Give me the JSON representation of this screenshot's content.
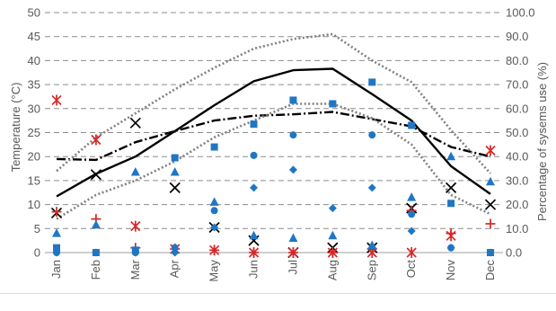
{
  "chart_data": {
    "type": "scatter",
    "categories": [
      "Jan",
      "Feb",
      "Mar",
      "Apr",
      "May",
      "Jun",
      "Jul",
      "Aug",
      "Sep",
      "Oct",
      "Nov",
      "Dec"
    ],
    "y_left": {
      "label": "Temperature (°C)",
      "range": [
        0,
        50
      ],
      "ticks": [
        "0",
        "5",
        "10",
        "15",
        "20",
        "25",
        "30",
        "35",
        "40",
        "45",
        "50"
      ]
    },
    "y_right": {
      "label": "Percentage of sysems use (%)",
      "range": [
        0,
        100
      ],
      "ticks": [
        "0.0",
        "10.0",
        "20.0",
        "30.0",
        "40.0",
        "50.0",
        "60.0",
        "70.0",
        "80.0",
        "90.0",
        "100.0"
      ]
    },
    "grid": "horizontal-dashed",
    "lines": [
      {
        "style": "solid",
        "color": "#000000",
        "axis": "left",
        "values": [
          11.7,
          16.4,
          20.0,
          25.3,
          30.7,
          35.7,
          38.0,
          38.3,
          33.0,
          27.5,
          18.0,
          12.2
        ]
      },
      {
        "style": "dash-dot",
        "color": "#000000",
        "axis": "left",
        "values": [
          19.5,
          19.3,
          23.0,
          25.3,
          27.5,
          28.5,
          28.8,
          29.3,
          27.8,
          26.3,
          22.0,
          20.0
        ]
      },
      {
        "style": "dotted",
        "color": "#808080",
        "axis": "left",
        "values": [
          17.0,
          24.0,
          29.0,
          34.0,
          38.5,
          42.5,
          44.5,
          45.5,
          40.0,
          35.5,
          25.5,
          16.5
        ]
      },
      {
        "style": "dotted",
        "color": "#808080",
        "axis": "left",
        "values": [
          7.0,
          12.0,
          15.0,
          19.0,
          24.0,
          27.5,
          31.0,
          31.0,
          28.0,
          22.5,
          12.0,
          8.0
        ]
      }
    ],
    "markers": [
      {
        "shape": "x",
        "color": "#000000",
        "axis": "right",
        "values": [
          16.5,
          32.5,
          54.0,
          27.0,
          10.5,
          5.0,
          0.0,
          2.0,
          2.0,
          18.5,
          27.0,
          20.0
        ]
      },
      {
        "shape": "asterisk",
        "color": "#d62728",
        "axis": "right",
        "values": [
          63.5,
          47.0,
          11.0,
          1.5,
          1.0,
          0.0,
          0.0,
          0.0,
          0.0,
          0.0,
          7.0,
          42.5
        ]
      },
      {
        "shape": "plus",
        "color": "#d62728",
        "axis": "right",
        "values": [
          17.0,
          14.0,
          2.0,
          1.5,
          1.0,
          0.0,
          0.0,
          0.0,
          1.5,
          17.5,
          8.0,
          12.0
        ]
      },
      {
        "shape": "triangle",
        "color": "#1f77c4",
        "axis": "right",
        "values": [
          8.0,
          11.5,
          33.5,
          33.5,
          21.0,
          7.0,
          6.0,
          7.0,
          3.0,
          23.0,
          40.0,
          29.5
        ]
      },
      {
        "shape": "square",
        "color": "#1f77c4",
        "axis": "right",
        "values": [
          2.0,
          0.0,
          1.0,
          39.5,
          44.0,
          53.5,
          63.5,
          62.0,
          71.0,
          53.0,
          20.5,
          0.0
        ]
      },
      {
        "shape": "circle",
        "color": "#1f77c4",
        "axis": "right",
        "values": [
          0.0,
          0.0,
          0.0,
          2.0,
          17.5,
          40.5,
          49.0,
          62.0,
          49.0,
          16.0,
          2.0,
          0.0
        ]
      },
      {
        "shape": "diamond",
        "color": "#1f77c4",
        "axis": "right",
        "values": [
          0.0,
          0.0,
          0.0,
          0.0,
          10.5,
          27.0,
          34.5,
          18.5,
          27.0,
          9.0,
          2.0,
          0.0
        ]
      }
    ]
  }
}
